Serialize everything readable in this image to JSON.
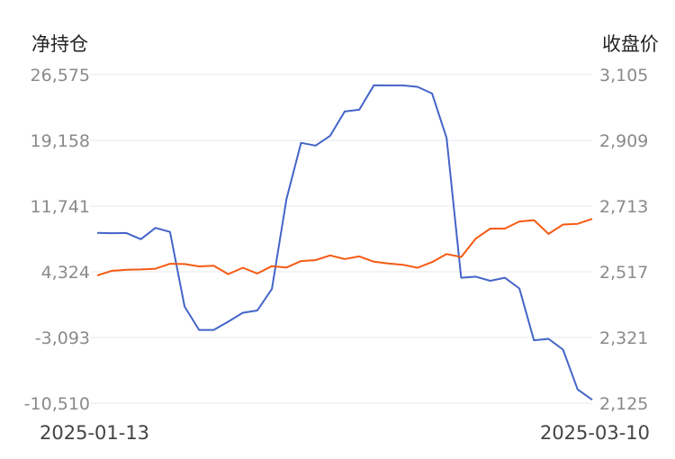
{
  "chart_data": {
    "type": "line",
    "left_axis_title": "净持仓",
    "right_axis_title": "收盘价",
    "left_ticks": [
      "26,575",
      "19,158",
      "11,741",
      "4,324",
      "-3,093",
      "-10,510"
    ],
    "right_ticks": [
      "3,105",
      "2,909",
      "2,713",
      "2,517",
      "2,321",
      "2,125"
    ],
    "left_range": [
      -10510,
      26575
    ],
    "right_range": [
      2125,
      3105
    ],
    "x_start_label": "2025-01-13",
    "x_end_label": "2025-03-10",
    "grid": true,
    "series": [
      {
        "axis": "left",
        "color": "#4464c8",
        "values": [
          8720,
          8680,
          8700,
          8000,
          9280,
          8820,
          400,
          -2240,
          -2240,
          -1300,
          -300,
          -40,
          2380,
          12520,
          18880,
          18570,
          19680,
          22420,
          22620,
          25380,
          25370,
          25370,
          25200,
          24450,
          19440,
          3650,
          3780,
          3310,
          3650,
          2440,
          -3410,
          -3250,
          -4460,
          -8960,
          -10120
        ]
      },
      {
        "axis": "right",
        "color": "#f55a14",
        "values": [
          2506,
          2520,
          2523,
          2524,
          2526,
          2541,
          2540,
          2533,
          2535,
          2510,
          2529,
          2512,
          2534,
          2530,
          2549,
          2552,
          2566,
          2555,
          2563,
          2547,
          2542,
          2538,
          2529,
          2546,
          2570,
          2561,
          2616,
          2646,
          2646,
          2667,
          2671,
          2630,
          2658,
          2660,
          2675
        ]
      }
    ]
  }
}
